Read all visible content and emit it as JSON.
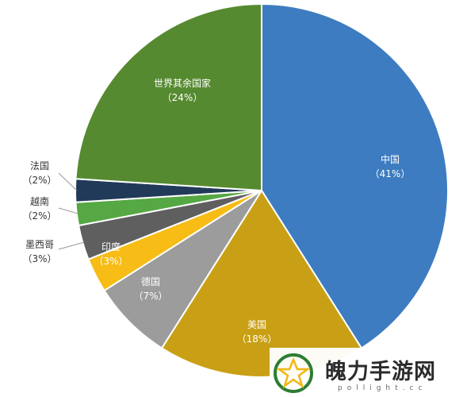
{
  "chart_data": {
    "type": "pie",
    "title": "",
    "slices": [
      {
        "label": "中国",
        "pct_label": "（41%）",
        "value": 41,
        "color": "#3d7cc0"
      },
      {
        "label": "美国",
        "pct_label": "（18%）",
        "value": 18,
        "color": "#c9a015"
      },
      {
        "label": "德国",
        "pct_label": "（7%）",
        "value": 7,
        "color": "#9c9c9c"
      },
      {
        "label": "印度",
        "pct_label": "（3%）",
        "value": 3,
        "color": "#f7bc15"
      },
      {
        "label": "墨西哥",
        "pct_label": "（3%）",
        "value": 3,
        "color": "#5f5f5f"
      },
      {
        "label": "越南",
        "pct_label": "（2%）",
        "value": 2,
        "color": "#55a843"
      },
      {
        "label": "法国",
        "pct_label": "（2%）",
        "value": 2,
        "color": "#213a59"
      },
      {
        "label": "世界其余国家",
        "pct_label": "（24%）",
        "value": 24,
        "color": "#568a30"
      }
    ]
  },
  "watermark": {
    "text": "魄力手游网",
    "sub": "pollight.cc"
  }
}
